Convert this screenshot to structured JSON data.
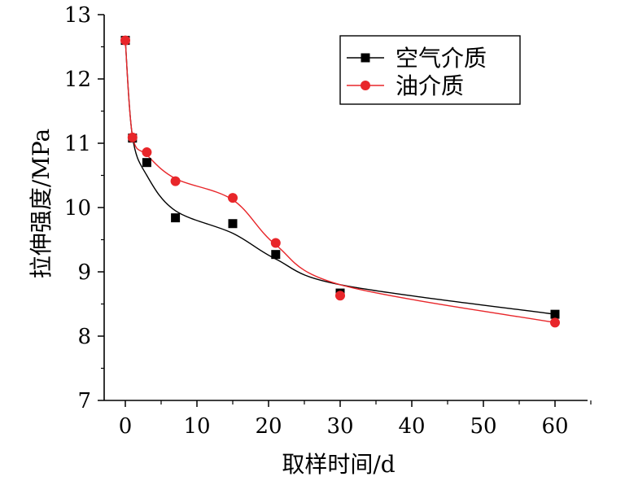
{
  "chart_data": {
    "type": "line",
    "title": "",
    "xlabel": "取样时间/d",
    "ylabel": "拉伸强度/MPa",
    "xlim": [
      -2,
      65
    ],
    "ylim": [
      7,
      13
    ],
    "xticks": [
      0,
      10,
      20,
      30,
      40,
      50,
      60
    ],
    "yticks": [
      7,
      8,
      9,
      10,
      11,
      12,
      13
    ],
    "x_tick_labels": [
      "0",
      "10",
      "20",
      "30",
      "40",
      "50",
      "60"
    ],
    "y_tick_labels": [
      "7",
      "8",
      "9",
      "10",
      "11",
      "12",
      "13"
    ],
    "grid": false,
    "legend_position": "top-right",
    "series": [
      {
        "name": "空气介质",
        "marker": "square",
        "color": "#000000",
        "line_color": "#000000",
        "x": [
          0,
          1,
          3,
          7,
          15,
          21,
          30,
          60
        ],
        "values": [
          12.6,
          11.08,
          10.7,
          9.84,
          9.75,
          9.27,
          8.67,
          8.34
        ],
        "fit": [
          12.6,
          11.1,
          10.5,
          9.95,
          9.6,
          9.2,
          8.8,
          8.34
        ]
      },
      {
        "name": "油介质",
        "marker": "circle",
        "color": "#e8262a",
        "line_color": "#e8262a",
        "x": [
          0,
          1,
          3,
          7,
          15,
          21,
          30,
          60
        ],
        "values": [
          12.6,
          11.09,
          10.86,
          10.41,
          10.15,
          9.45,
          8.63,
          8.21
        ],
        "fit": [
          12.6,
          11.12,
          10.82,
          10.45,
          10.12,
          9.42,
          8.8,
          8.21
        ]
      }
    ]
  }
}
